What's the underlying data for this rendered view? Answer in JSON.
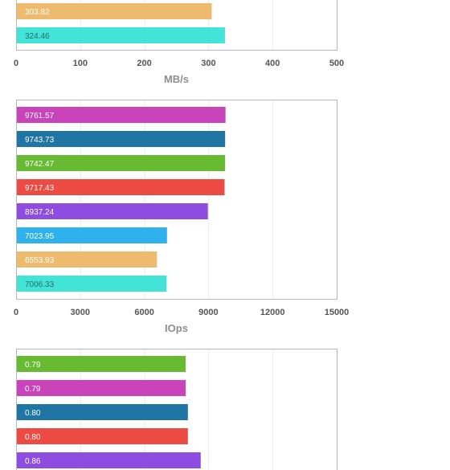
{
  "chart_data": [
    {
      "type": "bar",
      "orientation": "horizontal",
      "title": "",
      "xlabel": "MB/s",
      "ylabel": "",
      "xlim": [
        0,
        500
      ],
      "ticks": [
        "0",
        "100",
        "200",
        "300",
        "400",
        "500"
      ],
      "grid": true,
      "values": [
        303.82,
        324.46
      ],
      "labels": [
        "303.82",
        "324.46"
      ],
      "colors": [
        "#EEBB6E",
        "#42E4D8"
      ]
    },
    {
      "type": "bar",
      "orientation": "horizontal",
      "title": "",
      "xlabel": "IOps",
      "ylabel": "",
      "xlim": [
        0,
        15000
      ],
      "ticks": [
        "0",
        "3000",
        "6000",
        "9000",
        "12000",
        "15000"
      ],
      "grid": true,
      "values": [
        9761.57,
        9743.73,
        9742.47,
        9717.43,
        8937.24,
        7023.95,
        6553.93,
        7006.33
      ],
      "labels": [
        "9761.57",
        "9743.73",
        "9742.47",
        "9717.43",
        "8937.24",
        "7023.95",
        "6553.93",
        "7006.33"
      ],
      "colors": [
        "#C944BB",
        "#1F75A3",
        "#66BB33",
        "#EE4A44",
        "#8E4DE0",
        "#2EB1EC",
        "#EEBB6E",
        "#42E4D8"
      ]
    },
    {
      "type": "bar",
      "orientation": "horizontal",
      "title": "",
      "xlabel": "",
      "ylabel": "",
      "xlim": [
        0,
        1.5
      ],
      "ticks": [],
      "grid": true,
      "values": [
        0.79,
        0.79,
        0.8,
        0.8,
        0.86
      ],
      "labels": [
        "0.79",
        "0.79",
        "0.80",
        "0.80",
        "0.86"
      ],
      "colors": [
        "#66BB33",
        "#C944BB",
        "#1F75A3",
        "#EE4A44",
        "#8E4DE0"
      ]
    }
  ]
}
